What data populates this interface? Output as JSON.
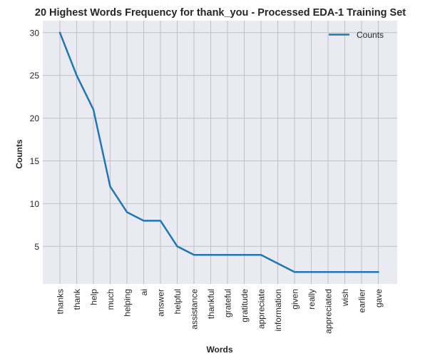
{
  "chart_data": {
    "type": "line",
    "title": "20 Highest Words Frequency for thank_you - Processed EDA-1 Training Set",
    "xlabel": "Words",
    "ylabel": "Counts",
    "categories": [
      "thanks",
      "thank",
      "help",
      "much",
      "helping",
      "ai",
      "answer",
      "helpful",
      "assistance",
      "thankful",
      "grateful",
      "gratitude",
      "appreciate",
      "information",
      "given",
      "really",
      "appreciated",
      "wish",
      "earlier",
      "gave"
    ],
    "series": [
      {
        "name": "Counts",
        "values": [
          30,
          25,
          21,
          12,
          9,
          8,
          8,
          5,
          4,
          4,
          4,
          4,
          4,
          3,
          2,
          2,
          2,
          2,
          2,
          2
        ],
        "color": "#1f77b4"
      }
    ],
    "ylim": [
      0.6,
      31.4
    ],
    "yticks": [
      5,
      10,
      15,
      20,
      25,
      30
    ],
    "grid": true,
    "legend": "top-right",
    "background": "#eaeaf2",
    "grid_color": "#c0c0c8"
  }
}
